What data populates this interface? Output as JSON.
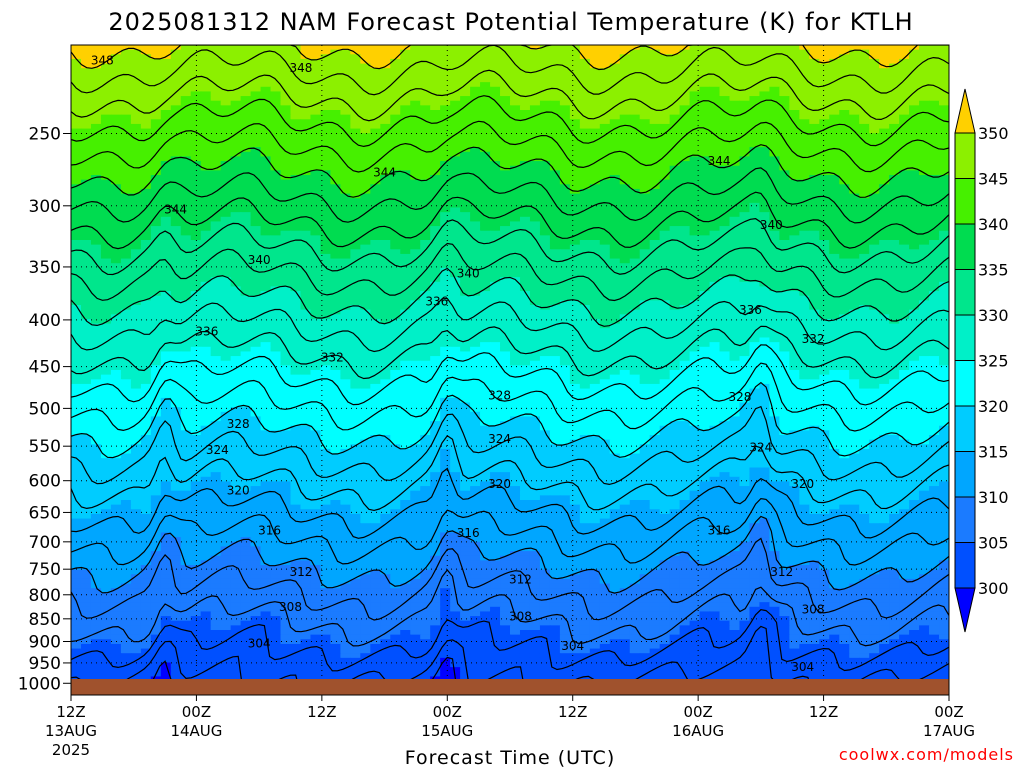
{
  "title": "2025081312 NAM Forecast Potential Temperature (K) for KTLH",
  "credit": "coolwx.com/models",
  "colors": {
    "ground": "#a0522d",
    "fills": [
      "#0000ff",
      "#0050ff",
      "#1b7bff",
      "#00a6ff",
      "#00ccff",
      "#00ffff",
      "#00f0c8",
      "#00e68c",
      "#00dc50",
      "#46f000",
      "#8cf000",
      "#c8f000",
      "#fff000",
      "#ffd000"
    ]
  },
  "chart_data": {
    "type": "contour",
    "title": "2025081312 NAM Forecast Potential Temperature (K) for KTLH",
    "xlabel": "Forecast Time (UTC)",
    "ylabel": "",
    "x_ticks": [
      {
        "hour": 0,
        "top": "12Z",
        "bottom": "13AUG",
        "extra": "2025"
      },
      {
        "hour": 12,
        "top": "00Z",
        "bottom": "14AUG",
        "extra": ""
      },
      {
        "hour": 24,
        "top": "12Z",
        "bottom": "",
        "extra": ""
      },
      {
        "hour": 36,
        "top": "00Z",
        "bottom": "15AUG",
        "extra": ""
      },
      {
        "hour": 48,
        "top": "12Z",
        "bottom": "",
        "extra": ""
      },
      {
        "hour": 60,
        "top": "00Z",
        "bottom": "16AUG",
        "extra": ""
      },
      {
        "hour": 72,
        "top": "12Z",
        "bottom": "",
        "extra": ""
      },
      {
        "hour": 84,
        "top": "00Z",
        "bottom": "17AUG",
        "extra": ""
      }
    ],
    "x_range_hours": [
      0,
      84
    ],
    "y_ticks": [
      "250",
      "300",
      "350",
      "400",
      "450",
      "500",
      "550",
      "600",
      "650",
      "700",
      "750",
      "800",
      "850",
      "900",
      "950",
      "1000"
    ],
    "y_tick_values": [
      250,
      300,
      350,
      400,
      450,
      500,
      550,
      600,
      650,
      700,
      750,
      800,
      850,
      900,
      950,
      1000
    ],
    "y_scale": "log-pressure",
    "y_range_hpa": [
      1030,
      200
    ],
    "grid": true,
    "colorbar": {
      "labels": [
        "300",
        "305",
        "310",
        "315",
        "320",
        "325",
        "330",
        "335",
        "340",
        "345",
        "350"
      ],
      "levels": [
        300,
        305,
        310,
        315,
        320,
        325,
        330,
        335,
        340,
        345,
        350
      ],
      "extend": "both"
    },
    "contour_interval": 2,
    "contour_labels": [
      {
        "text": "348",
        "hour": 3,
        "hpa": 208
      },
      {
        "text": "348",
        "hour": 22,
        "hpa": 212
      },
      {
        "text": "344",
        "hour": 30,
        "hpa": 276
      },
      {
        "text": "344",
        "hour": 62,
        "hpa": 268
      },
      {
        "text": "344",
        "hour": 10,
        "hpa": 303
      },
      {
        "text": "340",
        "hour": 67,
        "hpa": 315
      },
      {
        "text": "340",
        "hour": 18,
        "hpa": 344
      },
      {
        "text": "340",
        "hour": 38,
        "hpa": 356
      },
      {
        "text": "336",
        "hour": 35,
        "hpa": 382
      },
      {
        "text": "336",
        "hour": 65,
        "hpa": 390
      },
      {
        "text": "336",
        "hour": 13,
        "hpa": 412
      },
      {
        "text": "332",
        "hour": 71,
        "hpa": 420
      },
      {
        "text": "332",
        "hour": 25,
        "hpa": 440
      },
      {
        "text": "328",
        "hour": 41,
        "hpa": 484
      },
      {
        "text": "328",
        "hour": 64,
        "hpa": 486
      },
      {
        "text": "328",
        "hour": 16,
        "hpa": 520
      },
      {
        "text": "324",
        "hour": 41,
        "hpa": 540
      },
      {
        "text": "324",
        "hour": 66,
        "hpa": 552
      },
      {
        "text": "324",
        "hour": 14,
        "hpa": 555
      },
      {
        "text": "320",
        "hour": 41,
        "hpa": 605
      },
      {
        "text": "320",
        "hour": 70,
        "hpa": 605
      },
      {
        "text": "320",
        "hour": 16,
        "hpa": 615
      },
      {
        "text": "316",
        "hour": 19,
        "hpa": 680
      },
      {
        "text": "316",
        "hour": 62,
        "hpa": 680
      },
      {
        "text": "316",
        "hour": 38,
        "hpa": 685
      },
      {
        "text": "312",
        "hour": 22,
        "hpa": 755
      },
      {
        "text": "312",
        "hour": 68,
        "hpa": 755
      },
      {
        "text": "312",
        "hour": 43,
        "hpa": 770
      },
      {
        "text": "308",
        "hour": 21,
        "hpa": 825
      },
      {
        "text": "308",
        "hour": 71,
        "hpa": 830
      },
      {
        "text": "308",
        "hour": 43,
        "hpa": 845
      },
      {
        "text": "304",
        "hour": 18,
        "hpa": 905
      },
      {
        "text": "304",
        "hour": 48,
        "hpa": 910
      },
      {
        "text": "304",
        "hour": 70,
        "hpa": 960
      }
    ]
  }
}
